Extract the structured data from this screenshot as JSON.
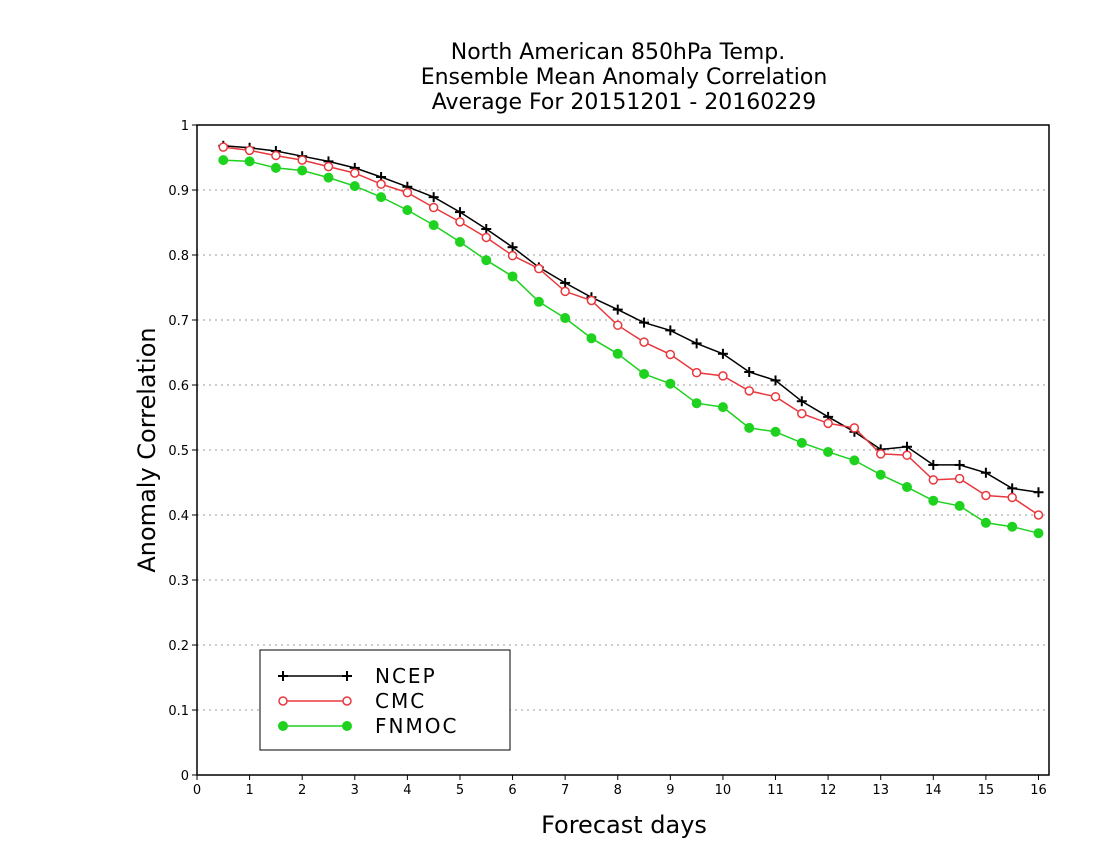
{
  "chart_data": {
    "type": "line",
    "title": [
      "North American 850hPa Temp.",
      "Ensemble Mean Anomaly Correlation",
      "Average For 20151201 - 20160229"
    ],
    "xlabel": "Forecast days",
    "ylabel": "Anomaly Correlation",
    "xlim": [
      0,
      16.2
    ],
    "ylim": [
      0,
      1
    ],
    "xticks": [
      "0",
      "1",
      "2",
      "3",
      "4",
      "5",
      "6",
      "7",
      "8",
      "9",
      "10",
      "11",
      "12",
      "13",
      "14",
      "15",
      "16"
    ],
    "yticks": [
      "0",
      "0.1",
      "0.2",
      "0.3",
      "0.4",
      "0.5",
      "0.6",
      "0.7",
      "0.8",
      "0.9",
      "1"
    ],
    "grid": true,
    "legend_position": "bottom-left",
    "x": [
      0.5,
      1,
      1.5,
      2,
      2.5,
      3,
      3.5,
      4,
      4.5,
      5,
      5.5,
      6,
      6.5,
      7,
      7.5,
      8,
      8.5,
      9,
      9.5,
      10,
      10.5,
      11,
      11.5,
      12,
      12.5,
      13,
      13.5,
      14,
      14.5,
      15,
      15.5,
      16
    ],
    "series": [
      {
        "name": "NCEP",
        "color": "#000000",
        "marker": "plus",
        "values": [
          0.968,
          0.965,
          0.96,
          0.952,
          0.944,
          0.934,
          0.92,
          0.905,
          0.889,
          0.866,
          0.84,
          0.812,
          0.781,
          0.757,
          0.735,
          0.716,
          0.696,
          0.684,
          0.664,
          0.648,
          0.62,
          0.607,
          0.575,
          0.551,
          0.528,
          0.501,
          0.505,
          0.477,
          0.477,
          0.465,
          0.441,
          0.435
        ]
      },
      {
        "name": "CMC",
        "color": "#e8383d",
        "marker": "open-circle",
        "values": [
          0.966,
          0.961,
          0.953,
          0.946,
          0.936,
          0.926,
          0.909,
          0.896,
          0.873,
          0.851,
          0.827,
          0.799,
          0.779,
          0.744,
          0.73,
          0.692,
          0.666,
          0.647,
          0.619,
          0.614,
          0.591,
          0.582,
          0.556,
          0.541,
          0.534,
          0.494,
          0.492,
          0.454,
          0.456,
          0.43,
          0.427,
          0.4
        ]
      },
      {
        "name": "FNMOC",
        "color": "#1fd21f",
        "marker": "filled-circle",
        "values": [
          0.946,
          0.944,
          0.934,
          0.93,
          0.919,
          0.906,
          0.889,
          0.869,
          0.846,
          0.82,
          0.792,
          0.767,
          0.728,
          0.703,
          0.672,
          0.648,
          0.617,
          0.602,
          0.572,
          0.566,
          0.534,
          0.528,
          0.511,
          0.497,
          0.484,
          0.462,
          0.443,
          0.422,
          0.414,
          0.388,
          0.382,
          0.372
        ]
      }
    ]
  }
}
